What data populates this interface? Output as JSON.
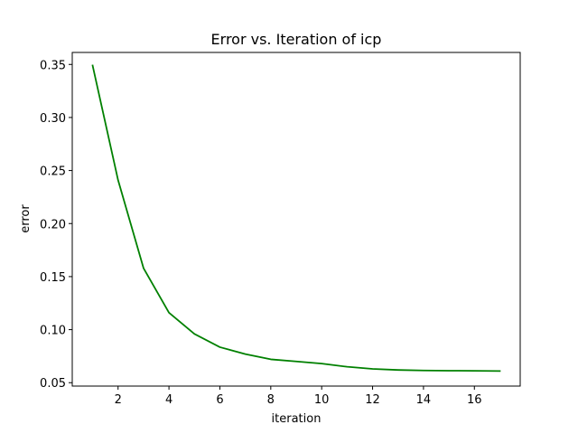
{
  "chart_data": {
    "type": "line",
    "title": "Error vs. Iteration of icp",
    "xlabel": "iteration",
    "ylabel": "error",
    "xlim": [
      0.2,
      17.8
    ],
    "ylim": [
      0.0468,
      0.3613
    ],
    "x_ticks": [
      2,
      4,
      6,
      8,
      10,
      12,
      14,
      16
    ],
    "x_tick_labels": [
      "2",
      "4",
      "6",
      "8",
      "10",
      "12",
      "14",
      "16"
    ],
    "y_ticks": [
      0.05,
      0.1,
      0.15,
      0.2,
      0.25,
      0.3,
      0.35
    ],
    "y_tick_labels": [
      "0.05",
      "0.10",
      "0.15",
      "0.20",
      "0.25",
      "0.30",
      "0.35"
    ],
    "grid": false,
    "series": [
      {
        "color": "#008000",
        "x": [
          1,
          2,
          3,
          4,
          5,
          6,
          7,
          8,
          9,
          10,
          11,
          12,
          13,
          14,
          15,
          16,
          17
        ],
        "values": [
          0.349,
          0.241,
          0.158,
          0.116,
          0.096,
          0.0835,
          0.077,
          0.072,
          0.07,
          0.068,
          0.065,
          0.063,
          0.062,
          0.0615,
          0.0613,
          0.0612,
          0.061
        ]
      }
    ]
  }
}
